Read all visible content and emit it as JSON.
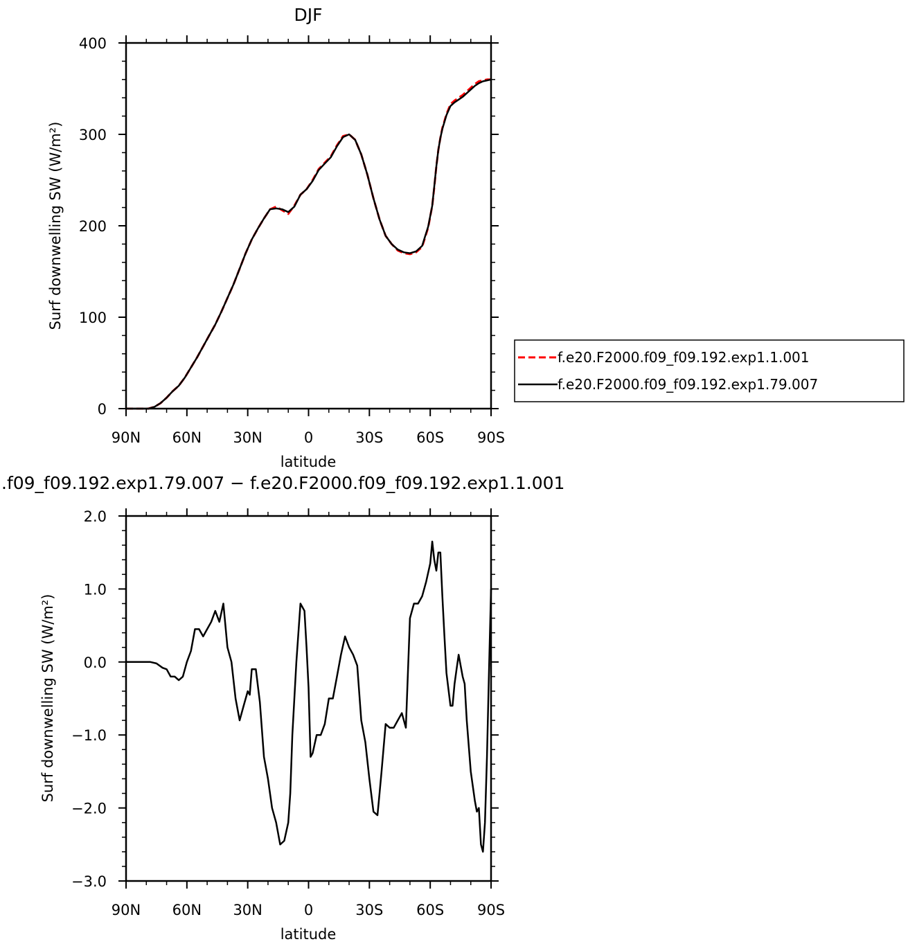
{
  "chart_data": [
    {
      "type": "line",
      "title": "DJF",
      "xlabel": "latitude",
      "ylabel": "Surf downwelling SW (W/m²)",
      "xlim": [
        90,
        -90
      ],
      "ylim": [
        0,
        400
      ],
      "x_tick_values": [
        90,
        60,
        30,
        0,
        -30,
        -60,
        -90
      ],
      "x_tick_labels": [
        "90N",
        "60N",
        "30N",
        "0",
        "30S",
        "60S",
        "90S"
      ],
      "y_tick_values": [
        0,
        100,
        200,
        300,
        400
      ],
      "y_tick_labels": [
        "0",
        "100",
        "200",
        "300",
        "400"
      ],
      "legend": {
        "placement": "right"
      },
      "series": [
        {
          "name": "f.e20.F2000.f09_f09.192.exp1.1.001",
          "color": "#ff0000",
          "dash": "dashed",
          "x": [
            90,
            86,
            82,
            79,
            76,
            73,
            70,
            67,
            64,
            61,
            58,
            55,
            52,
            49,
            46,
            43,
            40,
            37,
            34,
            31,
            28,
            25,
            22,
            19,
            16,
            13,
            10,
            7,
            4,
            1,
            -2,
            -5,
            -8,
            -11,
            -14,
            -17,
            -20,
            -23,
            -26,
            -29,
            -32,
            -35,
            -38,
            -41,
            -44,
            -47,
            -50,
            -53,
            -56,
            -59,
            -61,
            -62,
            -63,
            -64,
            -65,
            -66,
            -68,
            -70,
            -72,
            -74,
            -76,
            -78,
            -80,
            -82,
            -84,
            -86,
            -88,
            -90
          ],
          "y": [
            0,
            0,
            0,
            0,
            2,
            6,
            12,
            19,
            25,
            34,
            45,
            56,
            68,
            80,
            92,
            106,
            121,
            136,
            153,
            170,
            185,
            197,
            208,
            218,
            221,
            217,
            213,
            222,
            234,
            240,
            250,
            262,
            269,
            276,
            288,
            298,
            300,
            294,
            278,
            256,
            230,
            207,
            189,
            180,
            173,
            170,
            169,
            171,
            177,
            198,
            222,
            242,
            265,
            283,
            296,
            307,
            322,
            333,
            337,
            340,
            343,
            347,
            351,
            355,
            358,
            359,
            360,
            360
          ],
          "y_exact_note": "",
          "y2": []
        },
        {
          "name": "f.e20.F2000.f09_f09.192.exp1.79.007",
          "color": "#000000",
          "dash": "solid",
          "x": [
            90,
            86,
            82,
            79,
            76,
            73,
            70,
            67,
            64,
            61,
            58,
            55,
            52,
            49,
            46,
            43,
            40,
            37,
            34,
            31,
            28,
            25,
            22,
            19,
            16,
            13,
            10,
            7,
            4,
            1,
            -2,
            -5,
            -8,
            -11,
            -14,
            -17,
            -20,
            -23,
            -26,
            -29,
            -32,
            -35,
            -38,
            -41,
            -44,
            -47,
            -50,
            -53,
            -56,
            -59,
            -61,
            -62,
            -63,
            -64,
            -65,
            -66,
            -68,
            -70,
            -72,
            -74,
            -76,
            -78,
            -80,
            -82,
            -84,
            -86,
            -88,
            -90
          ],
          "y": [
            0,
            0,
            0,
            0,
            2,
            6,
            12,
            19,
            25,
            34,
            45,
            56,
            68,
            80,
            92,
            106,
            121,
            136,
            153,
            170,
            185,
            197,
            208,
            218,
            219,
            218,
            215,
            221,
            234,
            240,
            249,
            261,
            268,
            275,
            287,
            297,
            300,
            294,
            278,
            256,
            230,
            207,
            189,
            180,
            174,
            171,
            170,
            172,
            178,
            199,
            222,
            243,
            265,
            283,
            296,
            306,
            321,
            331,
            335,
            338,
            341,
            345,
            349,
            353,
            356,
            358,
            359,
            360
          ],
          "y_exact_note": "",
          "y2": []
        }
      ]
    },
    {
      "type": "line",
      "title": ".f09_f09.192.exp1.79.007 − f.e20.F2000.f09_f09.192.exp1.1.001",
      "xlabel": "latitude",
      "ylabel": "Surf downwelling SW (W/m²)",
      "xlim": [
        90,
        -90
      ],
      "ylim": [
        -3.0,
        2.0
      ],
      "x_tick_values": [
        90,
        60,
        30,
        0,
        -30,
        -60,
        -90
      ],
      "x_tick_labels": [
        "90N",
        "60N",
        "30N",
        "0",
        "30S",
        "60S",
        "90S"
      ],
      "y_tick_values": [
        -3.0,
        -2.0,
        -1.0,
        0.0,
        1.0,
        2.0
      ],
      "y_tick_labels": [
        "−3.0",
        "−2.0",
        "−1.0",
        "0.0",
        "1.0",
        "2.0"
      ],
      "series": [
        {
          "color": "#000000",
          "dash": "solid",
          "x": [
            90,
            78,
            75,
            72,
            70,
            68,
            66,
            64,
            62,
            60,
            58,
            56,
            54,
            52,
            50,
            48,
            46,
            44,
            42,
            40,
            38,
            36,
            34,
            32,
            30,
            29,
            28,
            26,
            24,
            22,
            20,
            18,
            16,
            14,
            12,
            10,
            9,
            8,
            6,
            4,
            2,
            1,
            0,
            -1,
            -2,
            -4,
            -6,
            -8,
            -10,
            -12,
            -14,
            -16,
            -18,
            -20,
            -22,
            -24,
            -26,
            -28,
            -30,
            -32,
            -34,
            -35,
            -36,
            -38,
            -40,
            -42,
            -44,
            -46,
            -48,
            -50,
            -52,
            -54,
            -56,
            -58,
            -60,
            -61,
            -62,
            -63,
            -64,
            -65,
            -66,
            -67,
            -68,
            -70,
            -71,
            -72,
            -73,
            -74,
            -75,
            -76,
            -77,
            -78,
            -80,
            -82,
            -83,
            -84,
            -85,
            -86,
            -87,
            -88,
            -89,
            -90
          ],
          "y": [
            0.0,
            0.0,
            -0.02,
            -0.08,
            -0.1,
            -0.2,
            -0.2,
            -0.25,
            -0.2,
            0.0,
            0.15,
            0.45,
            0.45,
            0.35,
            0.45,
            0.55,
            0.7,
            0.55,
            0.8,
            0.2,
            0.0,
            -0.5,
            -0.8,
            -0.6,
            -0.4,
            -0.45,
            -0.1,
            -0.1,
            -0.55,
            -1.3,
            -1.6,
            -2.0,
            -2.2,
            -2.5,
            -2.45,
            -2.2,
            -1.8,
            -1.0,
            0.0,
            0.8,
            0.7,
            0.2,
            -0.35,
            -1.3,
            -1.25,
            -1.0,
            -1.0,
            -0.85,
            -0.5,
            -0.5,
            -0.2,
            0.1,
            0.35,
            0.2,
            0.1,
            -0.05,
            -0.8,
            -1.1,
            -1.6,
            -2.05,
            -2.1,
            -1.8,
            -1.5,
            -0.85,
            -0.9,
            -0.9,
            -0.8,
            -0.7,
            -0.9,
            0.6,
            0.8,
            0.8,
            0.9,
            1.1,
            1.35,
            1.65,
            1.4,
            1.25,
            1.5,
            1.5,
            0.9,
            0.35,
            -0.15,
            -0.6,
            -0.6,
            -0.3,
            -0.1,
            0.1,
            -0.05,
            -0.2,
            -0.3,
            -0.8,
            -1.5,
            -1.9,
            -2.05,
            -2.0,
            -2.5,
            -2.6,
            -2.2,
            -1.3,
            -0.1,
            1.0
          ],
          "y_exact_note": "",
          "y2": []
        }
      ]
    }
  ]
}
